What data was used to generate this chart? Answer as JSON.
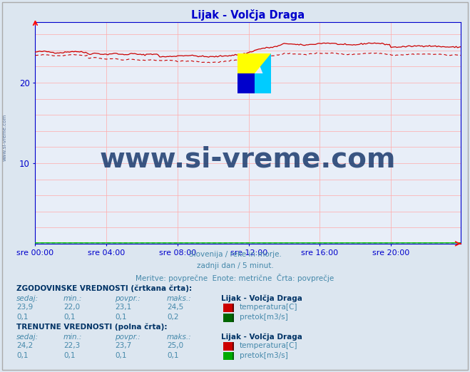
{
  "title": "Lijak - Volčja Draga",
  "background_color": "#dce6f0",
  "plot_bg_color": "#e8eef8",
  "grid_color": "#ffaaaa",
  "axis_color": "#0000cc",
  "border_color": "#0000cc",
  "n_points": 288,
  "x_tick_labels": [
    "sre 00:00",
    "sre 04:00",
    "sre 08:00",
    "sre 12:00",
    "sre 16:00",
    "sre 20:00"
  ],
  "x_tick_positions": [
    0,
    48,
    96,
    144,
    192,
    240
  ],
  "y_min": 0,
  "y_max": 27.5,
  "y_ticks": [
    10,
    20
  ],
  "temp_solid_color": "#cc0000",
  "temp_dashed_color": "#cc0000",
  "flow_color": "#00bb00",
  "subtitle1": "Slovenija / reke in morje.",
  "subtitle2": "zadnji dan / 5 minut.",
  "subtitle3": "Meritve: povprečne  Enote: metrične  Črta: povprečje",
  "hist_label": "ZGODOVINSKE VREDNOSTI (črtkana črta):",
  "curr_label": "TRENUTNE VREDNOSTI (polna črta):",
  "col_headers": [
    "sedaj:",
    "min.:",
    "povpr.:",
    "maks.:"
  ],
  "station_name": "Lijak - Volčja Draga",
  "hist_temp_vals": [
    "23,9",
    "22,0",
    "23,1",
    "24,5"
  ],
  "hist_flow_vals": [
    "0,1",
    "0,1",
    "0,1",
    "0,2"
  ],
  "curr_temp_vals": [
    "24,2",
    "22,3",
    "23,7",
    "25,0"
  ],
  "curr_flow_vals": [
    "0,1",
    "0,1",
    "0,1",
    "0,1"
  ],
  "temp_label": "temperatura[C]",
  "flow_label": "pretok[m3/s]",
  "watermark": "www.si-vreme.com",
  "watermark_color": "#1a3a6e",
  "watermark_size": 28,
  "sidebar_text": "www.si-vreme.com",
  "sidebar_color": "#1a3a6e",
  "text_color": "#4488aa",
  "bold_color": "#003366"
}
